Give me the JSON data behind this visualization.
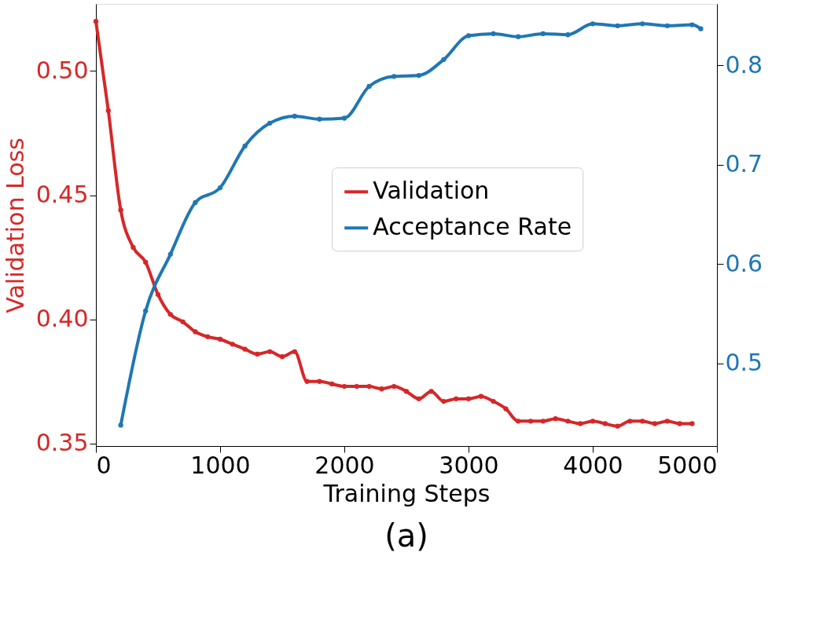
{
  "chart_data": {
    "type": "line",
    "xlabel": "Training Steps",
    "ylabel": "Validation Loss",
    "xlim": [
      0,
      5000
    ],
    "xticks": [
      0,
      1000,
      2000,
      3000,
      4000,
      5000
    ],
    "ylim": [
      0.349,
      0.527
    ],
    "yticks": [
      {
        "value": 0.35,
        "label": "0.35"
      },
      {
        "value": 0.4,
        "label": "0.40"
      },
      {
        "value": 0.45,
        "label": "0.45"
      },
      {
        "value": 0.5,
        "label": "0.50"
      }
    ],
    "y2lim": [
      0.417,
      0.862
    ],
    "y2ticks": [
      0.5,
      0.6,
      0.7,
      0.8
    ],
    "series": [
      {
        "name": "Validation",
        "color": "#d62728",
        "axis": "y",
        "x": [
          0,
          100,
          200,
          300,
          400,
          500,
          600,
          700,
          800,
          900,
          1000,
          1100,
          1200,
          1300,
          1400,
          1500,
          1600,
          1700,
          1800,
          1900,
          2000,
          2100,
          2200,
          2300,
          2400,
          2500,
          2600,
          2700,
          2800,
          2900,
          3000,
          3100,
          3200,
          3300,
          3400,
          3500,
          3600,
          3700,
          3800,
          3900,
          4000,
          4100,
          4200,
          4300,
          4400,
          4500,
          4600,
          4700,
          4800
        ],
        "values": [
          0.52,
          0.484,
          0.444,
          0.429,
          0.423,
          0.41,
          0.402,
          0.399,
          0.395,
          0.393,
          0.392,
          0.39,
          0.388,
          0.386,
          0.387,
          0.385,
          0.387,
          0.375,
          0.375,
          0.374,
          0.373,
          0.373,
          0.373,
          0.372,
          0.373,
          0.371,
          0.368,
          0.371,
          0.367,
          0.368,
          0.368,
          0.369,
          0.367,
          0.364,
          0.359,
          0.359,
          0.359,
          0.36,
          0.359,
          0.358,
          0.359,
          0.358,
          0.357,
          0.359,
          0.359,
          0.358,
          0.359,
          0.358,
          0.358
        ]
      },
      {
        "name": "Acceptance Rate",
        "color": "#1f77b4",
        "axis": "y2",
        "x": [
          200,
          400,
          600,
          800,
          1000,
          1200,
          1400,
          1600,
          1800,
          2000,
          2200,
          2400,
          2600,
          2800,
          3000,
          3200,
          3400,
          3600,
          3800,
          4000,
          4200,
          4400,
          4600,
          4800,
          4870
        ],
        "values": [
          0.438,
          0.553,
          0.61,
          0.662,
          0.677,
          0.719,
          0.742,
          0.749,
          0.746,
          0.747,
          0.779,
          0.789,
          0.79,
          0.806,
          0.83,
          0.832,
          0.829,
          0.832,
          0.831,
          0.842,
          0.84,
          0.842,
          0.84,
          0.841,
          0.837
        ]
      }
    ],
    "marker": "circle",
    "line_style": "solid",
    "grid": false,
    "legend": "right",
    "annotations": [
      "(a)"
    ]
  }
}
